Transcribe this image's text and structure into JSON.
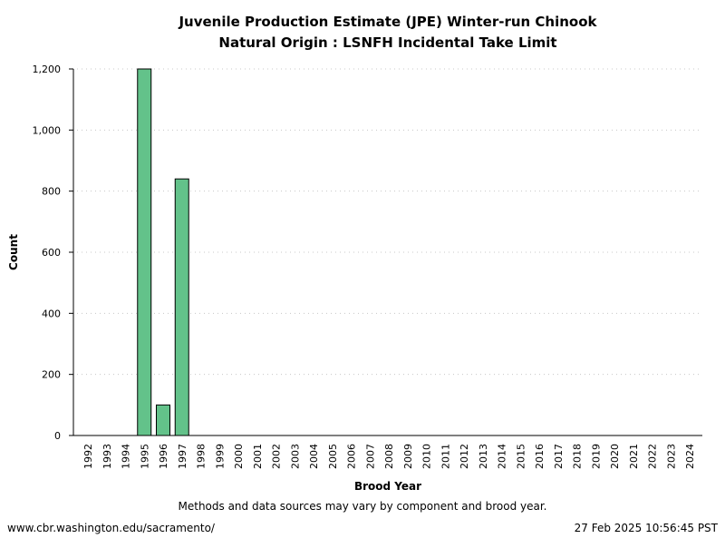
{
  "chart_data": {
    "type": "bar",
    "title": "Juvenile Production Estimate (JPE) Winter-run Chinook",
    "subtitle": "Natural Origin : LSNFH Incidental Take Limit",
    "xlabel": "Brood Year",
    "ylabel": "Count",
    "ylim": [
      0,
      1200
    ],
    "yticks": [
      "0",
      "200",
      "400",
      "600",
      "800",
      "1,000",
      "1,200"
    ],
    "ytick_values": [
      0,
      200,
      400,
      600,
      800,
      1000,
      1200
    ],
    "grid": "horizontal dotted",
    "bar_color": "#63c28a",
    "categories": [
      "1992",
      "1993",
      "1994",
      "1995",
      "1996",
      "1997",
      "1998",
      "1999",
      "2000",
      "2001",
      "2002",
      "2003",
      "2004",
      "2005",
      "2006",
      "2007",
      "2008",
      "2009",
      "2010",
      "2011",
      "2012",
      "2013",
      "2014",
      "2015",
      "2016",
      "2017",
      "2018",
      "2019",
      "2020",
      "2021",
      "2022",
      "2023",
      "2024"
    ],
    "values": [
      null,
      null,
      null,
      1200,
      100,
      840,
      null,
      null,
      null,
      null,
      null,
      null,
      null,
      null,
      null,
      null,
      null,
      null,
      null,
      null,
      null,
      null,
      null,
      null,
      null,
      null,
      null,
      null,
      null,
      null,
      null,
      null,
      null
    ]
  },
  "footer": {
    "note": "Methods and data sources may vary by component and brood year.",
    "url": "www.cbr.washington.edu/sacramento/",
    "timestamp": "27 Feb 2025 10:56:45 PST"
  }
}
